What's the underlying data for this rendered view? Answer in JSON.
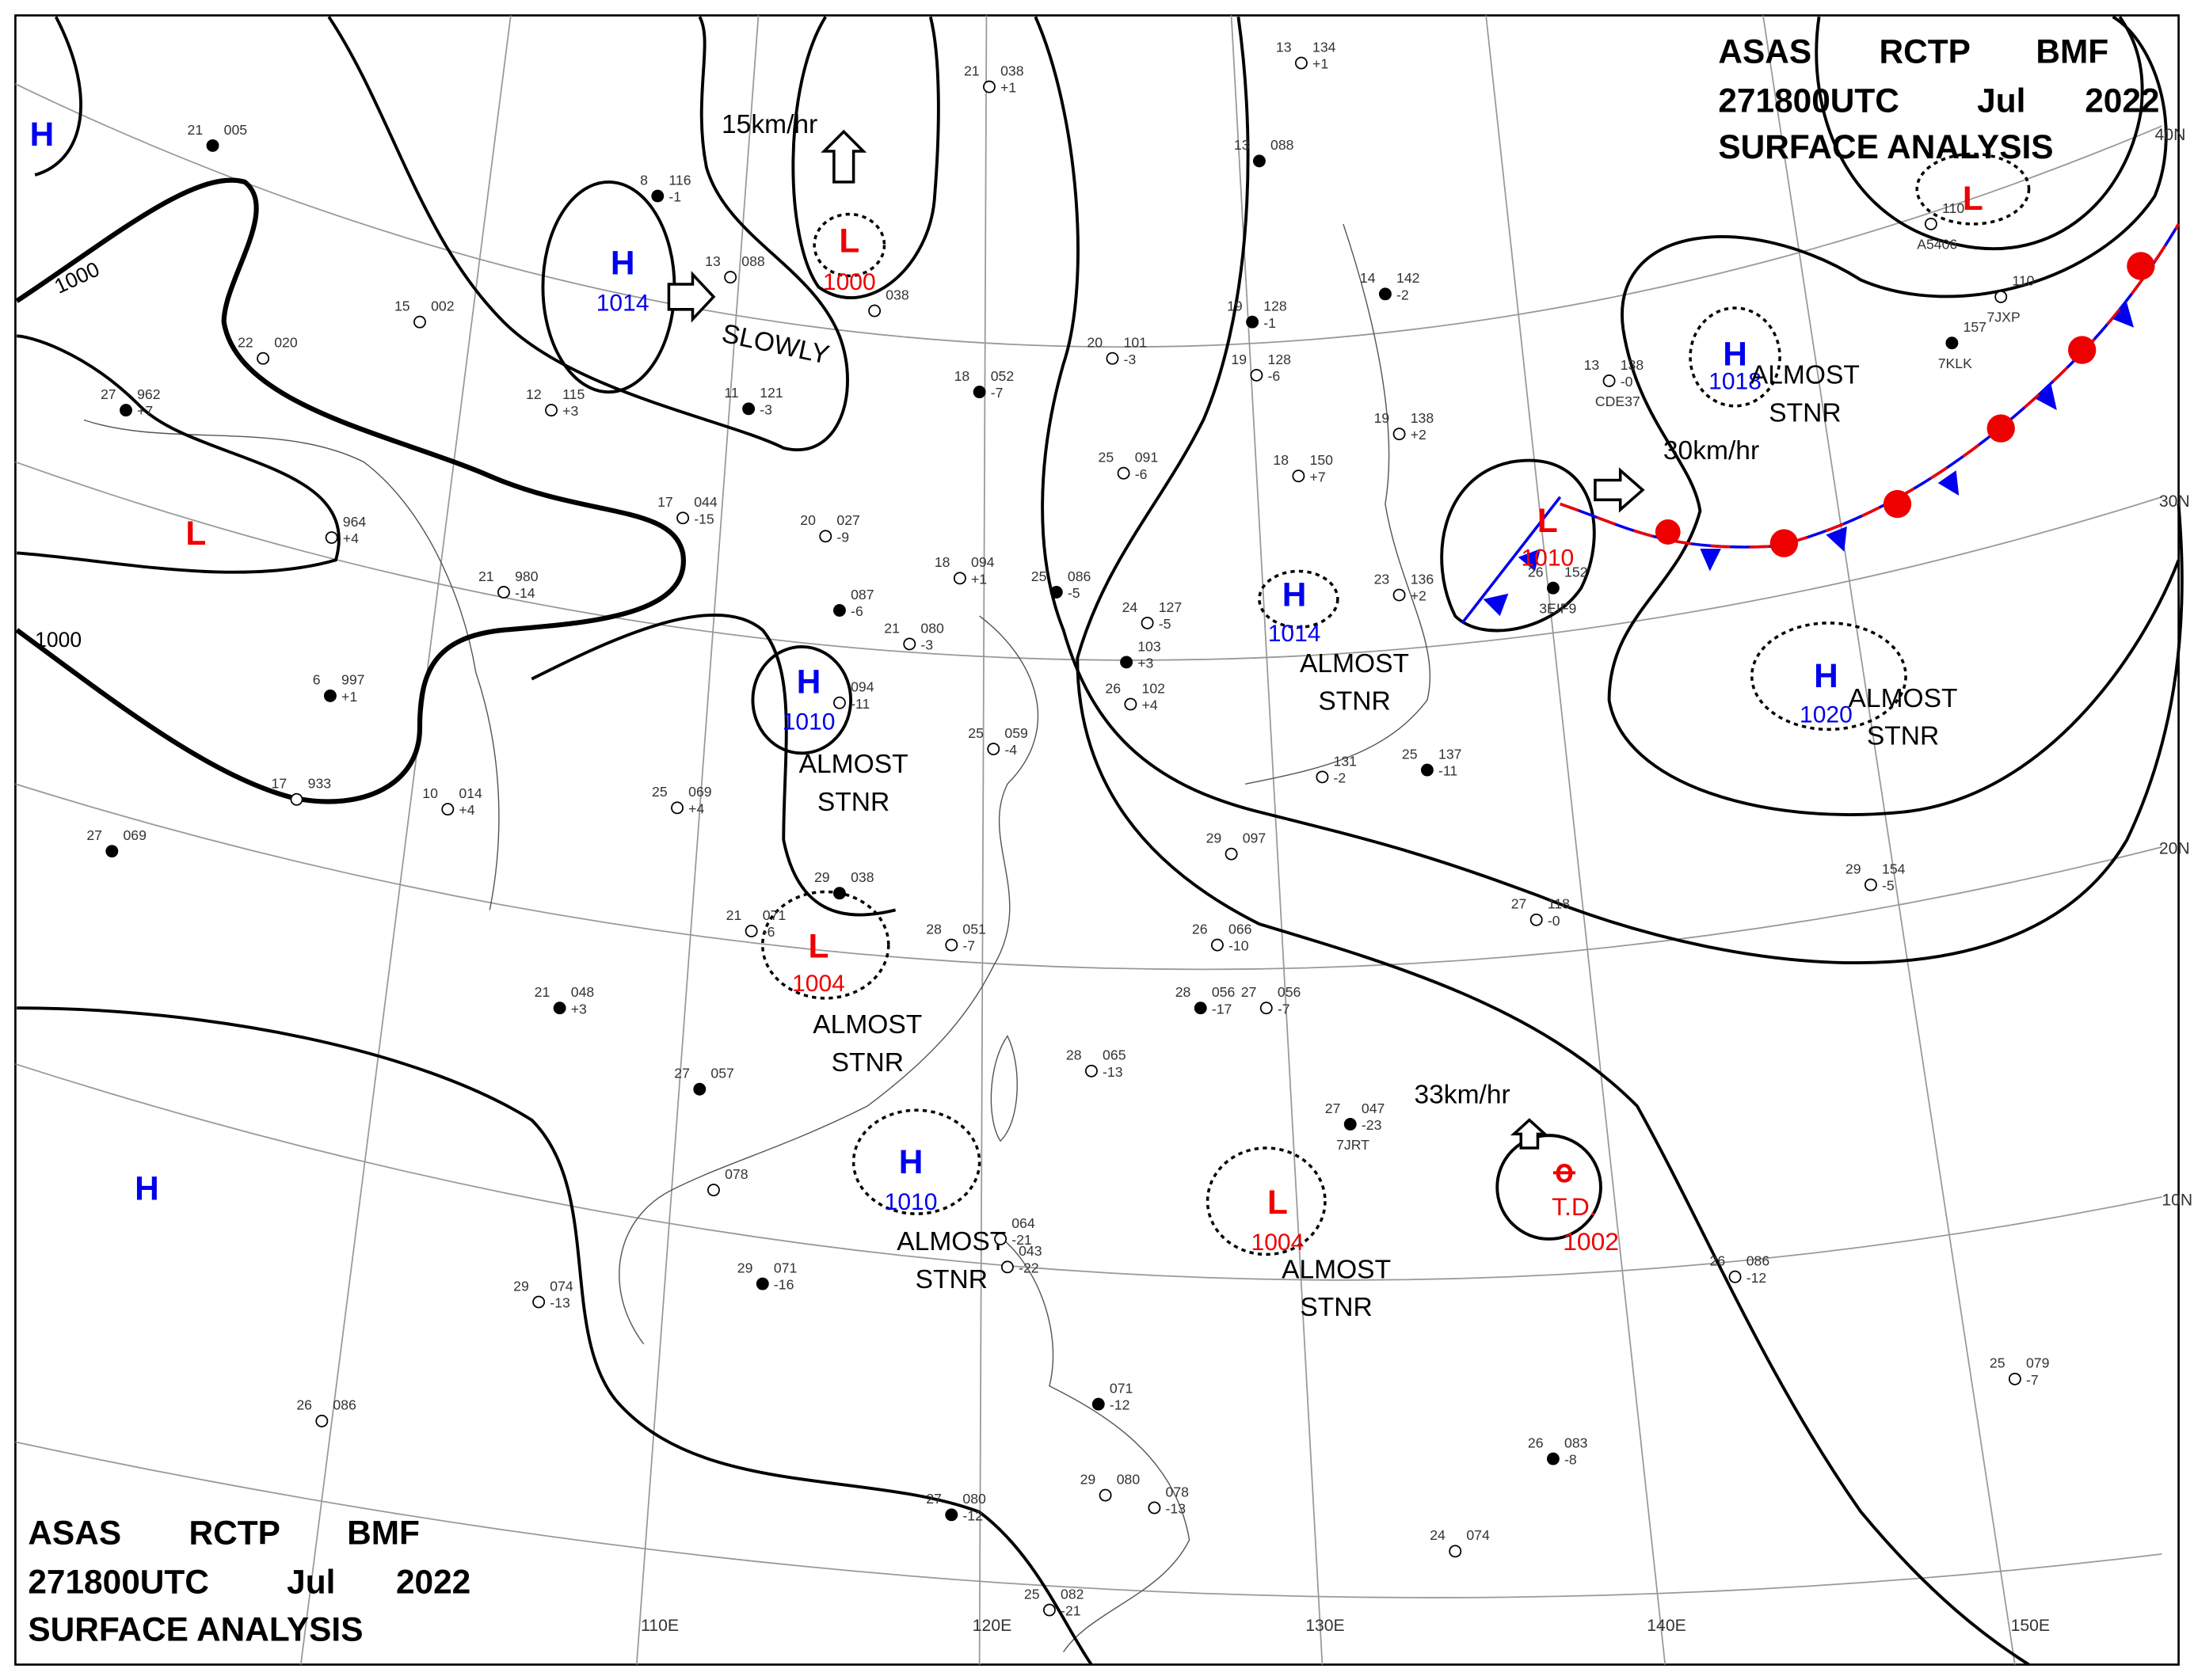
{
  "header": {
    "agency": "ASAS",
    "station": "RCTP",
    "product": "BMF",
    "time": "271800UTC",
    "month": "Jul",
    "year": "2022",
    "title": "SURFACE ANALYSIS"
  },
  "systems": [
    {
      "center": "H"
    },
    {
      "center": "H",
      "pressure": 1014
    },
    {
      "center": "L",
      "pressure": 1000
    },
    {
      "center": "L"
    },
    {
      "center": "H",
      "pressure": 1010
    },
    {
      "center": "L",
      "pressure": 1004
    },
    {
      "center": "H",
      "pressure": 1010
    },
    {
      "center": "H"
    },
    {
      "center": "L",
      "pressure": 1004
    },
    {
      "center": "H",
      "pressure": 1014
    },
    {
      "center": "L",
      "pressure": 1010
    },
    {
      "center": "H",
      "pressure": 1018
    },
    {
      "center": "H",
      "pressure": 1020
    },
    {
      "center": "L"
    }
  ],
  "typhoon": {
    "label": "T.D.",
    "pressure": 1002
  },
  "isobar_labels": [
    1000,
    1000
  ],
  "motions": [
    "15km/hr",
    "SLOWLY",
    "30km/hr",
    "33km/hr"
  ],
  "status_labels": [
    {
      "line1": "ALMOST",
      "line2": "STNR"
    },
    {
      "line1": "ALMOST",
      "line2": "STNR"
    },
    {
      "line1": "ALMOST",
      "line2": "STNR"
    },
    {
      "line1": "ALMOST",
      "line2": "STNR"
    },
    {
      "line1": "ALMOST",
      "line2": "STNR"
    },
    {
      "line1": "ALMOST",
      "line2": "STNR"
    },
    {
      "line1": "ALMOST",
      "line2": "STNR"
    }
  ],
  "latitudes": [
    "40N",
    "30N",
    "20N",
    "10N"
  ],
  "longitudes": [
    "110E",
    "120E",
    "130E",
    "140E",
    "150E"
  ],
  "stations": [
    {
      "temp": "21",
      "pressure": "005"
    },
    {
      "temp": "15",
      "pressure": "002"
    },
    {
      "temp": "22",
      "pressure": "020"
    },
    {
      "temp": "27",
      "pressure": "962",
      "tendency": "+7"
    },
    {
      "pressure": "964",
      "tendency": "+4"
    },
    {
      "temp": "21",
      "pressure": "980",
      "tendency": "-14"
    },
    {
      "temp": "6",
      "pressure": "997",
      "tendency": "+1"
    },
    {
      "temp": "17",
      "pressure": "933"
    },
    {
      "temp": "10",
      "pressure": "014",
      "tendency": "+4"
    },
    {
      "temp": "27",
      "pressure": "069"
    },
    {
      "temp": "25",
      "pressure": "069",
      "tendency": "+4"
    },
    {
      "temp": "17",
      "pressure": "044",
      "tendency": "-15"
    },
    {
      "temp": "8",
      "pressure": "116",
      "tendency": "-1"
    },
    {
      "temp": "13",
      "pressure": "088"
    },
    {
      "temp": "12",
      "pressure": "115",
      "tendency": "+3"
    },
    {
      "temp": "11",
      "pressure": "121",
      "tendency": "-3"
    },
    {
      "temp": "21",
      "pressure": "038",
      "tendency": "+1"
    },
    {
      "pressure": "038"
    },
    {
      "temp": "18",
      "pressure": "052",
      "tendency": "-7"
    },
    {
      "temp": "20",
      "pressure": "101",
      "tendency": "-3"
    },
    {
      "temp": "20",
      "pressure": "027",
      "tendency": "-9"
    },
    {
      "pressure": "087",
      "tendency": "-6"
    },
    {
      "temp": "21",
      "pressure": "080",
      "tendency": "-3"
    },
    {
      "temp": "18",
      "pressure": "094",
      "tendency": "+1"
    },
    {
      "temp": "25",
      "pressure": "086",
      "tendency": "-5"
    },
    {
      "pressure": "094",
      "tendency": "-11"
    },
    {
      "temp": "25",
      "pressure": "059",
      "tendency": "-4"
    },
    {
      "temp": "29",
      "pressure": "038"
    },
    {
      "temp": "21",
      "pressure": "071",
      "tendency": "-6"
    },
    {
      "temp": "28",
      "pressure": "051",
      "tendency": "-7"
    },
    {
      "temp": "21",
      "pressure": "048",
      "tendency": "+3"
    },
    {
      "temp": "28",
      "pressure": "065",
      "tendency": "-13"
    },
    {
      "temp": "26",
      "pressure": "066",
      "tendency": "-10"
    },
    {
      "temp": "28",
      "pressure": "056",
      "tendency": "-17"
    },
    {
      "temp": "27",
      "pressure": "056",
      "tendency": "-7"
    },
    {
      "temp": "25",
      "pressure": "091",
      "tendency": "-6"
    },
    {
      "temp": "19",
      "pressure": "128",
      "tendency": "-1"
    },
    {
      "temp": "19",
      "pressure": "128",
      "tendency": "-6"
    },
    {
      "temp": "18",
      "pressure": "150",
      "tendency": "+7"
    },
    {
      "temp": "14",
      "pressure": "142",
      "tendency": "-2"
    },
    {
      "temp": "19",
      "pressure": "138",
      "tendency": "+2"
    },
    {
      "temp": "13",
      "pressure": "134",
      "tendency": "+1"
    },
    {
      "temp": "13",
      "pressure": "088"
    },
    {
      "temp": "13",
      "pressure": "138",
      "tendency": "-0",
      "call": "CDE37"
    },
    {
      "pressure": "110",
      "call": "A5406"
    },
    {
      "pressure": "157",
      "call": "7KLK"
    },
    {
      "temp": "27",
      "pressure": "118",
      "tendency": "-0"
    },
    {
      "temp": "29",
      "pressure": "154",
      "tendency": "-5"
    },
    {
      "temp": "27",
      "pressure": "047",
      "tendency": "-23",
      "call": "7JRT"
    },
    {
      "temp": "26",
      "pressure": "086",
      "tendency": "-12"
    },
    {
      "temp": "25",
      "pressure": "079",
      "tendency": "-7"
    },
    {
      "temp": "26",
      "pressure": "083",
      "tendency": "-8"
    },
    {
      "temp": "24",
      "pressure": "074"
    },
    {
      "temp": "29",
      "pressure": "074",
      "tendency": "-13"
    },
    {
      "temp": "29",
      "pressure": "071",
      "tendency": "-16"
    },
    {
      "temp": "26",
      "pressure": "086"
    },
    {
      "pressure": "078"
    },
    {
      "temp": "27",
      "pressure": "057"
    },
    {
      "pressure": "043",
      "tendency": "-22"
    },
    {
      "pressure": "064",
      "tendency": "-21"
    },
    {
      "pressure": "071",
      "tendency": "-12"
    },
    {
      "temp": "29",
      "pressure": "080"
    },
    {
      "pressure": "078",
      "tendency": "-13"
    },
    {
      "temp": "27",
      "pressure": "080",
      "tendency": "-12"
    },
    {
      "temp": "25",
      "pressure": "082",
      "tendency": "-21"
    },
    {
      "temp": "29",
      "pressure": "097"
    },
    {
      "temp": "25",
      "pressure": "137",
      "tendency": "-11"
    },
    {
      "pressure": "131",
      "tendency": "-2"
    },
    {
      "temp": "26",
      "pressure": "102",
      "tendency": "+4"
    },
    {
      "pressure": "103",
      "tendency": "+3"
    },
    {
      "temp": "24",
      "pressure": "127",
      "tendency": "-5"
    },
    {
      "temp": "23",
      "pressure": "136",
      "tendency": "+2"
    },
    {
      "temp": "26",
      "pressure": "152",
      "call": "3EIF9"
    },
    {
      "pressure": "110",
      "call": "7JXP"
    }
  ]
}
